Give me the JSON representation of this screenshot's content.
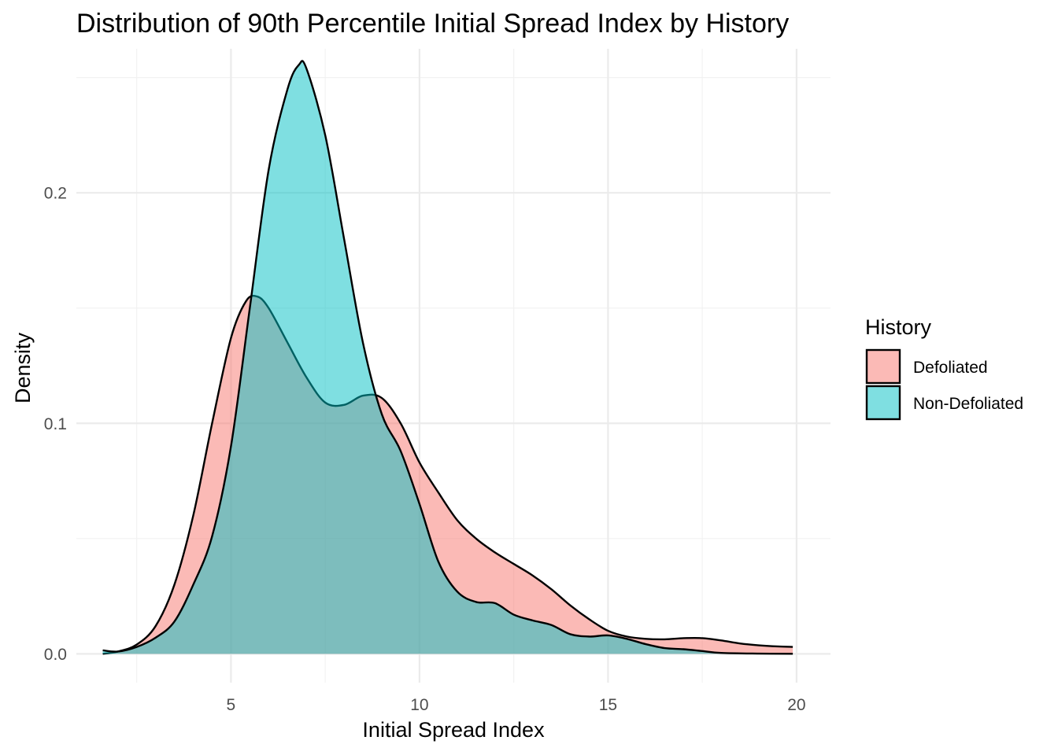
{
  "chart_data": {
    "type": "area",
    "title": "Distribution of 90th Percentile Initial Spread Index by History",
    "xlabel": "Initial Spread Index",
    "ylabel": "Density",
    "xlim": [
      0.9,
      20.9
    ],
    "ylim": [
      -0.0125,
      0.2625
    ],
    "x_ticks": [
      5,
      10,
      15,
      20
    ],
    "x_tick_labels": [
      "5",
      "10",
      "15",
      "20"
    ],
    "y_ticks": [
      0.0,
      0.1,
      0.2
    ],
    "y_tick_labels": [
      "0.0",
      "0.1",
      "0.2"
    ],
    "x_minor_ticks": [
      2.5,
      7.5,
      12.5,
      17.5
    ],
    "y_minor_ticks": [
      0.05,
      0.15,
      0.25
    ],
    "grid": true,
    "legend": {
      "title": "History",
      "position": "right"
    },
    "series": [
      {
        "name": "Defoliated",
        "color": "#F8766D",
        "fill_opacity": 0.5,
        "points": [
          [
            1.6,
            0.0
          ],
          [
            2.0,
            0.001
          ],
          [
            2.5,
            0.004
          ],
          [
            3.0,
            0.012
          ],
          [
            3.5,
            0.03
          ],
          [
            4.0,
            0.06
          ],
          [
            4.5,
            0.1
          ],
          [
            5.0,
            0.137
          ],
          [
            5.4,
            0.153
          ],
          [
            5.7,
            0.155
          ],
          [
            6.0,
            0.15
          ],
          [
            6.5,
            0.135
          ],
          [
            7.0,
            0.12
          ],
          [
            7.5,
            0.109
          ],
          [
            8.0,
            0.108
          ],
          [
            8.5,
            0.112
          ],
          [
            9.0,
            0.111
          ],
          [
            9.5,
            0.1
          ],
          [
            10.0,
            0.083
          ],
          [
            10.5,
            0.07
          ],
          [
            11.0,
            0.058
          ],
          [
            11.5,
            0.05
          ],
          [
            12.0,
            0.044
          ],
          [
            12.5,
            0.039
          ],
          [
            13.0,
            0.034
          ],
          [
            13.5,
            0.028
          ],
          [
            14.0,
            0.021
          ],
          [
            14.5,
            0.015
          ],
          [
            15.0,
            0.01
          ],
          [
            15.5,
            0.0075
          ],
          [
            16.0,
            0.0065
          ],
          [
            16.5,
            0.0063
          ],
          [
            17.0,
            0.0068
          ],
          [
            17.5,
            0.0068
          ],
          [
            18.0,
            0.0058
          ],
          [
            18.5,
            0.0045
          ],
          [
            19.0,
            0.0037
          ],
          [
            19.5,
            0.0032
          ],
          [
            19.9,
            0.003
          ]
        ]
      },
      {
        "name": "Non-Defoliated",
        "color": "#00BFC4",
        "fill_opacity": 0.5,
        "points": [
          [
            1.6,
            0.0015
          ],
          [
            2.0,
            0.001
          ],
          [
            2.5,
            0.003
          ],
          [
            3.0,
            0.007
          ],
          [
            3.5,
            0.014
          ],
          [
            4.0,
            0.03
          ],
          [
            4.5,
            0.051
          ],
          [
            5.0,
            0.09
          ],
          [
            5.5,
            0.15
          ],
          [
            6.0,
            0.21
          ],
          [
            6.5,
            0.245
          ],
          [
            6.8,
            0.2555
          ],
          [
            7.0,
            0.254
          ],
          [
            7.5,
            0.225
          ],
          [
            8.0,
            0.18
          ],
          [
            8.5,
            0.135
          ],
          [
            9.0,
            0.104
          ],
          [
            9.5,
            0.088
          ],
          [
            10.0,
            0.065
          ],
          [
            10.5,
            0.04
          ],
          [
            11.0,
            0.027
          ],
          [
            11.5,
            0.0225
          ],
          [
            12.0,
            0.022
          ],
          [
            12.5,
            0.017
          ],
          [
            13.0,
            0.0145
          ],
          [
            13.5,
            0.0125
          ],
          [
            14.0,
            0.0085
          ],
          [
            14.5,
            0.0075
          ],
          [
            15.0,
            0.008
          ],
          [
            15.5,
            0.0065
          ],
          [
            16.0,
            0.0042
          ],
          [
            16.5,
            0.0025
          ],
          [
            17.0,
            0.002
          ],
          [
            17.5,
            0.0012
          ],
          [
            18.0,
            0.0004
          ],
          [
            19.0,
            0.0001
          ],
          [
            19.9,
            0.0
          ]
        ]
      }
    ]
  }
}
